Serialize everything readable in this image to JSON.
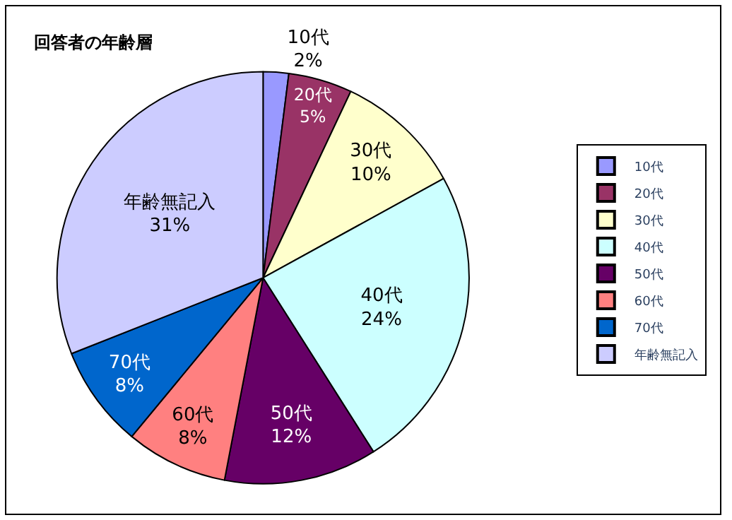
{
  "chart_data": {
    "type": "pie",
    "title": "回答者の年齢層",
    "categories": [
      "10代",
      "20代",
      "30代",
      "40代",
      "50代",
      "60代",
      "70代",
      "年齢無記入"
    ],
    "values": [
      2,
      5,
      10,
      24,
      12,
      8,
      8,
      31
    ],
    "value_labels": [
      "2%",
      "5%",
      "10%",
      "24%",
      "12%",
      "8%",
      "8%",
      "31%"
    ],
    "colors": [
      "#9999ff",
      "#993366",
      "#ffffcc",
      "#ccffff",
      "#660066",
      "#ff8080",
      "#0066cc",
      "#ccccff"
    ],
    "legend": "right"
  }
}
